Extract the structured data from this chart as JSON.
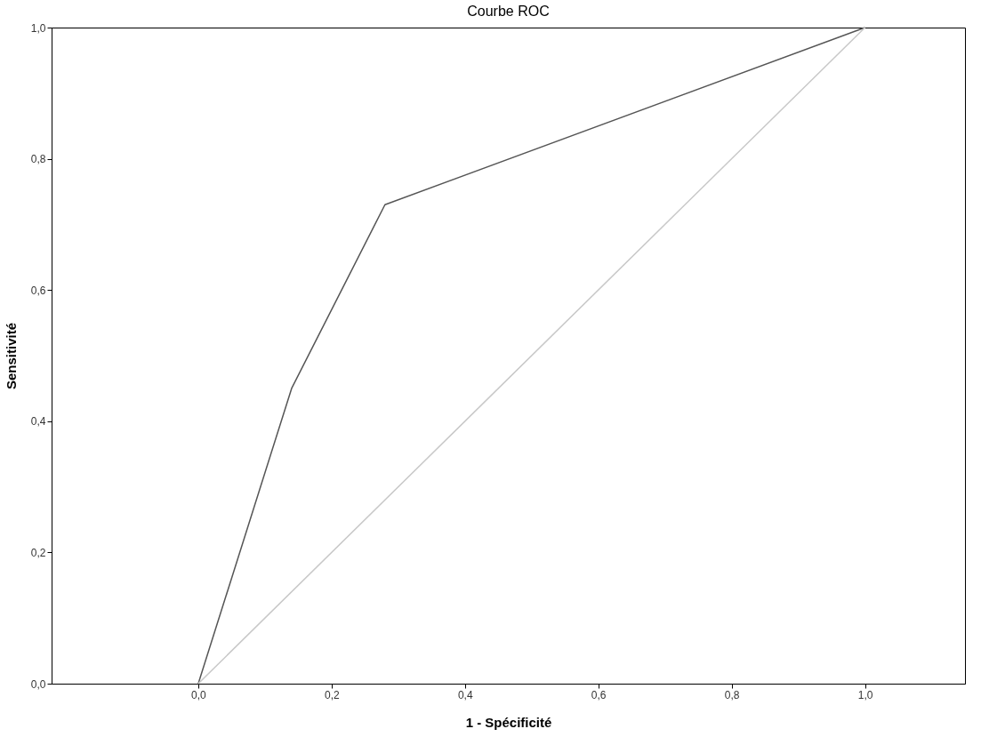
{
  "chart_data": {
    "type": "line",
    "title": "Courbe ROC",
    "xlabel": "1 - Spécificité",
    "ylabel": "Sensitivité",
    "series": [
      {
        "x": [
          0,
          0.14,
          0.28,
          1
        ],
        "values": [
          0,
          0.45,
          0.73,
          1
        ],
        "color": "#555555"
      },
      {
        "x": [
          0,
          1
        ],
        "values": [
          0,
          1
        ],
        "color": "#c8c8c8"
      }
    ],
    "xlim": [
      -0.22,
      1.15
    ],
    "ylim": [
      0,
      1
    ],
    "xticks": [
      {
        "value": 0,
        "label": "0,0"
      },
      {
        "value": 0.2,
        "label": "0,2"
      },
      {
        "value": 0.4,
        "label": "0,4"
      },
      {
        "value": 0.6,
        "label": "0,6"
      },
      {
        "value": 0.8,
        "label": "0,8"
      },
      {
        "value": 1,
        "label": "1,0"
      }
    ],
    "yticks": [
      {
        "value": 0,
        "label": "0,0"
      },
      {
        "value": 0.2,
        "label": "0,2"
      },
      {
        "value": 0.4,
        "label": "0,4"
      },
      {
        "value": 0.6,
        "label": "0,6"
      },
      {
        "value": 0.8,
        "label": "0,8"
      },
      {
        "value": 1,
        "label": "1,0"
      }
    ],
    "grid": false,
    "marker": "none",
    "line_style": "solid"
  }
}
